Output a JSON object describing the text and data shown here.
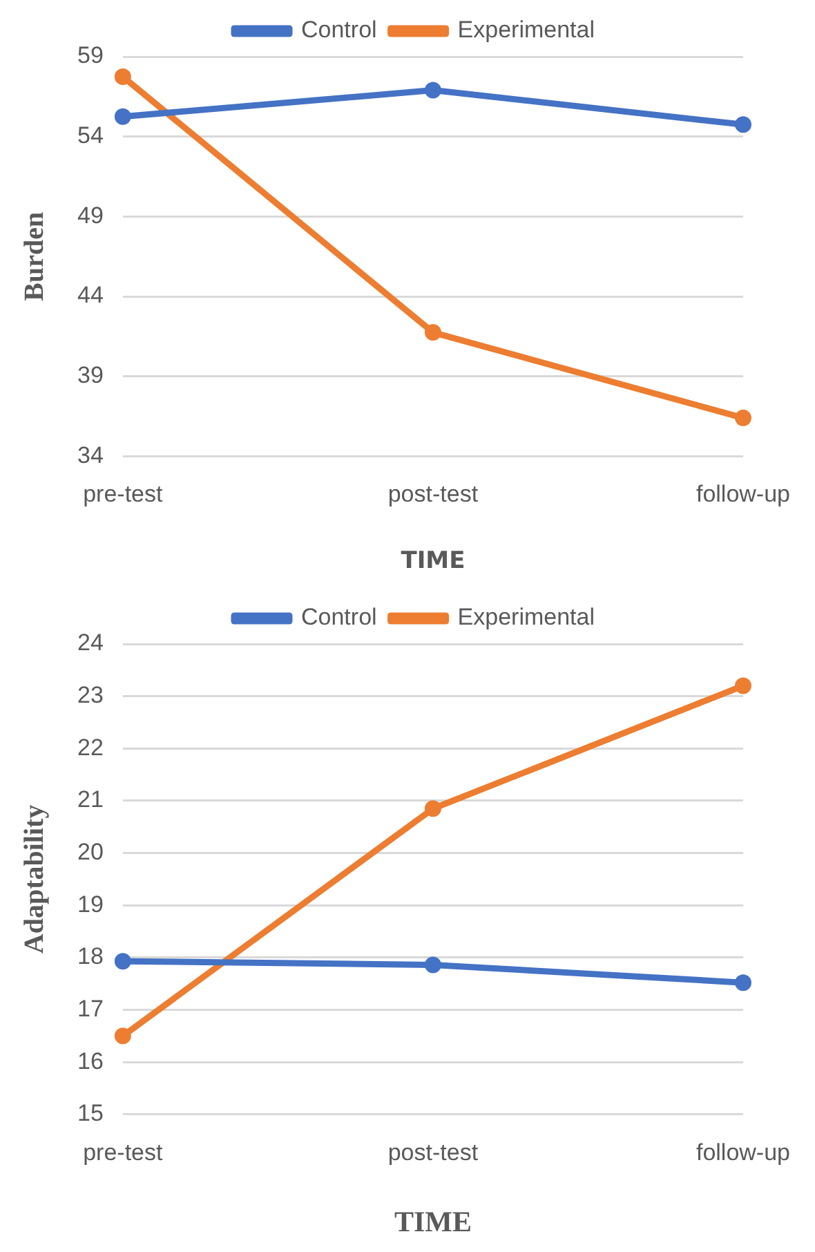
{
  "chart_data": [
    {
      "type": "line",
      "xlabel": "TIME",
      "ylabel": "Burden",
      "categories": [
        "pre-test",
        "post-test",
        "follow-up"
      ],
      "series": [
        {
          "name": "Control",
          "color": "#4472c4",
          "values": [
            55.25,
            56.9,
            54.75
          ]
        },
        {
          "name": "Experimental",
          "color": "#ed7d31",
          "values": [
            57.75,
            41.75,
            36.4
          ]
        }
      ],
      "ylim": [
        34,
        59
      ],
      "yticks": [
        34,
        39,
        44,
        49,
        54,
        59
      ],
      "grid": "y",
      "legend": "top",
      "marker": "circle",
      "line_style": "solid"
    },
    {
      "type": "line",
      "xlabel": "TIME",
      "ylabel": "Adaptability",
      "categories": [
        "pre-test",
        "post-test",
        "follow-up"
      ],
      "series": [
        {
          "name": "Control",
          "color": "#4472c4",
          "values": [
            17.93,
            17.86,
            17.52
          ]
        },
        {
          "name": "Experimental",
          "color": "#ed7d31",
          "values": [
            16.5,
            20.85,
            23.2
          ]
        }
      ],
      "ylim": [
        15,
        24
      ],
      "yticks": [
        15,
        16,
        17,
        18,
        19,
        20,
        21,
        22,
        23,
        24
      ],
      "grid": "y",
      "legend": "top",
      "marker": "circle",
      "line_style": "solid"
    }
  ]
}
